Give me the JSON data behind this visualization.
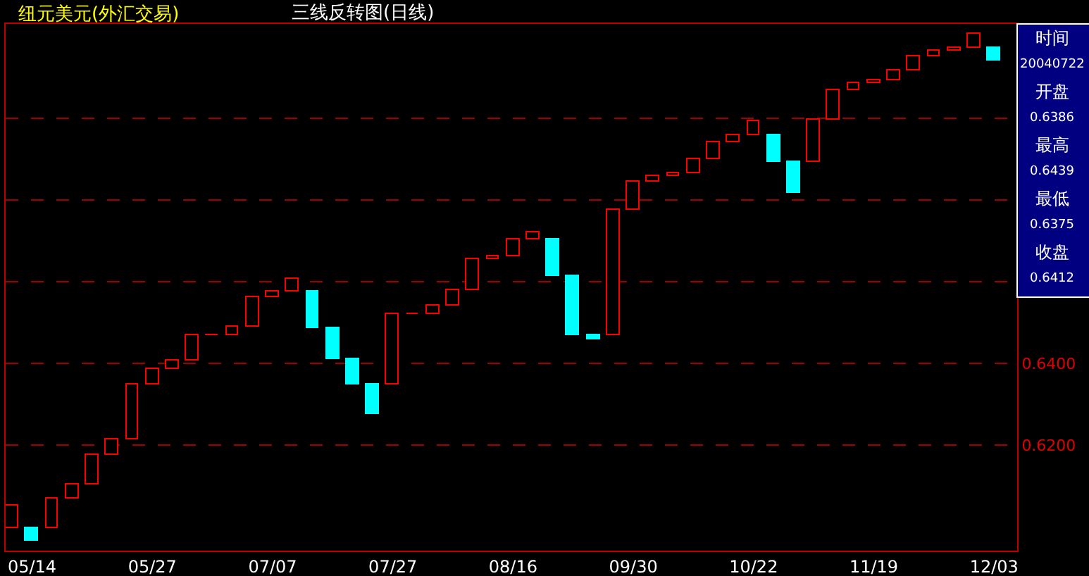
{
  "chart_data": {
    "type": "bar",
    "title": "纽元美元(外汇交易)",
    "subtitle": "三线反转图(日线)",
    "categories": [
      null,
      "05/14",
      null,
      null,
      null,
      null,
      null,
      "05/27",
      null,
      null,
      null,
      null,
      null,
      "07/07",
      null,
      null,
      null,
      null,
      null,
      "07/27",
      null,
      null,
      null,
      null,
      null,
      "08/16",
      null,
      null,
      null,
      null,
      null,
      "09/30",
      null,
      null,
      null,
      null,
      null,
      "10/22",
      null,
      null,
      null,
      null,
      null,
      "11/19",
      null,
      null,
      null,
      null,
      null,
      "12/03"
    ],
    "base": [
      0.5996,
      0.5996,
      0.5996,
      0.6069,
      0.6103,
      0.6175,
      0.6213,
      0.6347,
      0.6385,
      0.6409,
      0.6468,
      0.647,
      0.6489,
      0.6561,
      0.6575,
      0.6575,
      0.6487,
      0.6411,
      0.6349,
      0.6349,
      0.652,
      0.6522,
      0.654,
      0.6578,
      0.6654,
      0.6661,
      0.6702,
      0.6702,
      0.6614,
      0.6469,
      0.6469,
      0.6775,
      0.6844,
      0.6858,
      0.6864,
      0.6899,
      0.694,
      0.6958,
      0.6958,
      0.6893,
      0.6893,
      0.6996,
      0.7068,
      0.7085,
      0.7092,
      0.7116,
      0.7151,
      0.7164,
      0.7171,
      0.7171
    ],
    "values": [
      0.0055,
      -0.0029,
      0.0073,
      0.0034,
      0.0072,
      0.0038,
      0.0134,
      0.0038,
      0.0024,
      0.0059,
      0.0002,
      0.0019,
      0.0072,
      0.0014,
      0.0031,
      -0.0088,
      -0.0076,
      -0.0062,
      -0.0072,
      0.0171,
      0.0002,
      0.0018,
      0.0038,
      0.0076,
      0.0007,
      0.0041,
      0.0018,
      -0.0088,
      -0.0145,
      -0.001,
      0.0306,
      0.0069,
      0.0014,
      0.0006,
      0.0035,
      0.0041,
      0.0018,
      0.0034,
      -0.0065,
      -0.0076,
      0.0103,
      0.0072,
      0.0017,
      0.0007,
      0.0024,
      0.0035,
      0.0013,
      0.0007,
      0.0035,
      -0.003
    ],
    "colors": [
      "#ff0000",
      "#00ffff",
      "#ff0000",
      "#ff0000",
      "#ff0000",
      "#ff0000",
      "#ff0000",
      "#ff0000",
      "#ff0000",
      "#ff0000",
      "#ff0000",
      "#ff0000",
      "#ff0000",
      "#ff0000",
      "#ff0000",
      "#00ffff",
      "#00ffff",
      "#00ffff",
      "#00ffff",
      "#ff0000",
      "#ff0000",
      "#ff0000",
      "#ff0000",
      "#ff0000",
      "#ff0000",
      "#ff0000",
      "#ff0000",
      "#00ffff",
      "#00ffff",
      "#00ffff",
      "#ff0000",
      "#ff0000",
      "#ff0000",
      "#ff0000",
      "#ff0000",
      "#ff0000",
      "#ff0000",
      "#ff0000",
      "#00ffff",
      "#00ffff",
      "#ff0000",
      "#ff0000",
      "#ff0000",
      "#ff0000",
      "#ff0000",
      "#ff0000",
      "#ff0000",
      "#ff0000",
      "#ff0000",
      "#00ffff"
    ],
    "ylim": [
      0.5942,
      0.7231
    ],
    "yticks": [
      {
        "value": 0.62,
        "label": "0.6200"
      },
      {
        "value": 0.64,
        "label": "0.6400"
      },
      {
        "value": 0.66,
        "label": null
      },
      {
        "value": 0.68,
        "label": null
      },
      {
        "value": 0.7,
        "label": null
      }
    ],
    "grid": "y",
    "annotations": [
      "时间",
      "20040722",
      "开盘",
      "0.6386",
      "最高",
      "0.6439",
      "最低",
      "0.6375",
      "收盘",
      "0.6412"
    ]
  }
}
